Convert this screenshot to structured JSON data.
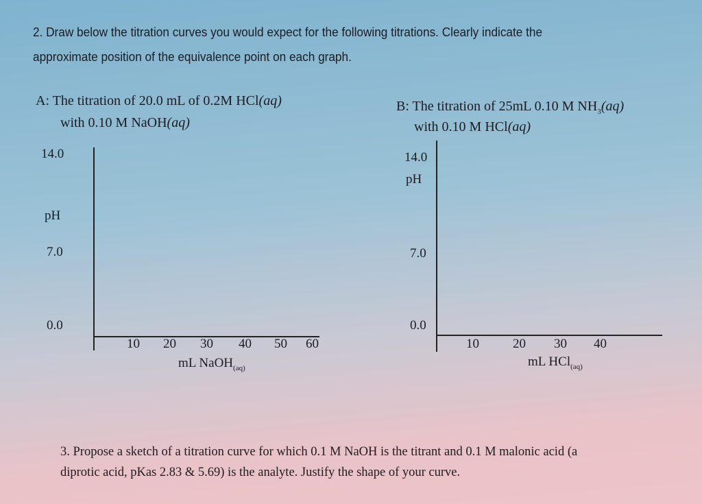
{
  "question2": {
    "line1": "2. Draw below the titration curves you would expect for the following titrations. Clearly indicate the",
    "line2": "approximate position of the equivalence point on each graph."
  },
  "graph_a": {
    "title1": {
      "text": "A: The titration of 20.0 mL of 0.2M HCl",
      "italic": "(aq)"
    },
    "title2": {
      "text": "with 0.10 M NaOH",
      "italic": "(aq)"
    },
    "y_labels": [
      "14.0",
      "pH",
      "7.0",
      "0.0"
    ],
    "x_ticks": [
      "10",
      "20",
      "30",
      "40",
      "50",
      "60"
    ],
    "x_label": {
      "text": "mL NaOH",
      "sub": "(aq)"
    }
  },
  "graph_b": {
    "title1": {
      "text": "B: The titration of 25mL 0.10 M NH",
      "sub": "3",
      "italic": "(aq)"
    },
    "title2": {
      "text": "with 0.10 M HCl",
      "italic": "(aq)"
    },
    "y_labels": [
      "14.0",
      "pH",
      "7.0",
      "0.0"
    ],
    "x_ticks": [
      "10",
      "20",
      "30",
      "40"
    ],
    "x_label": {
      "text": "mL HCl",
      "sub": "(aq)"
    }
  },
  "question3": {
    "line1": "3. Propose a sketch of a titration curve for which 0.1 M NaOH is the titrant and 0.1 M malonic acid (a",
    "line2": "diprotic acid, pKas 2.83 & 5.69) is the analyte. Justify the shape of your curve."
  }
}
